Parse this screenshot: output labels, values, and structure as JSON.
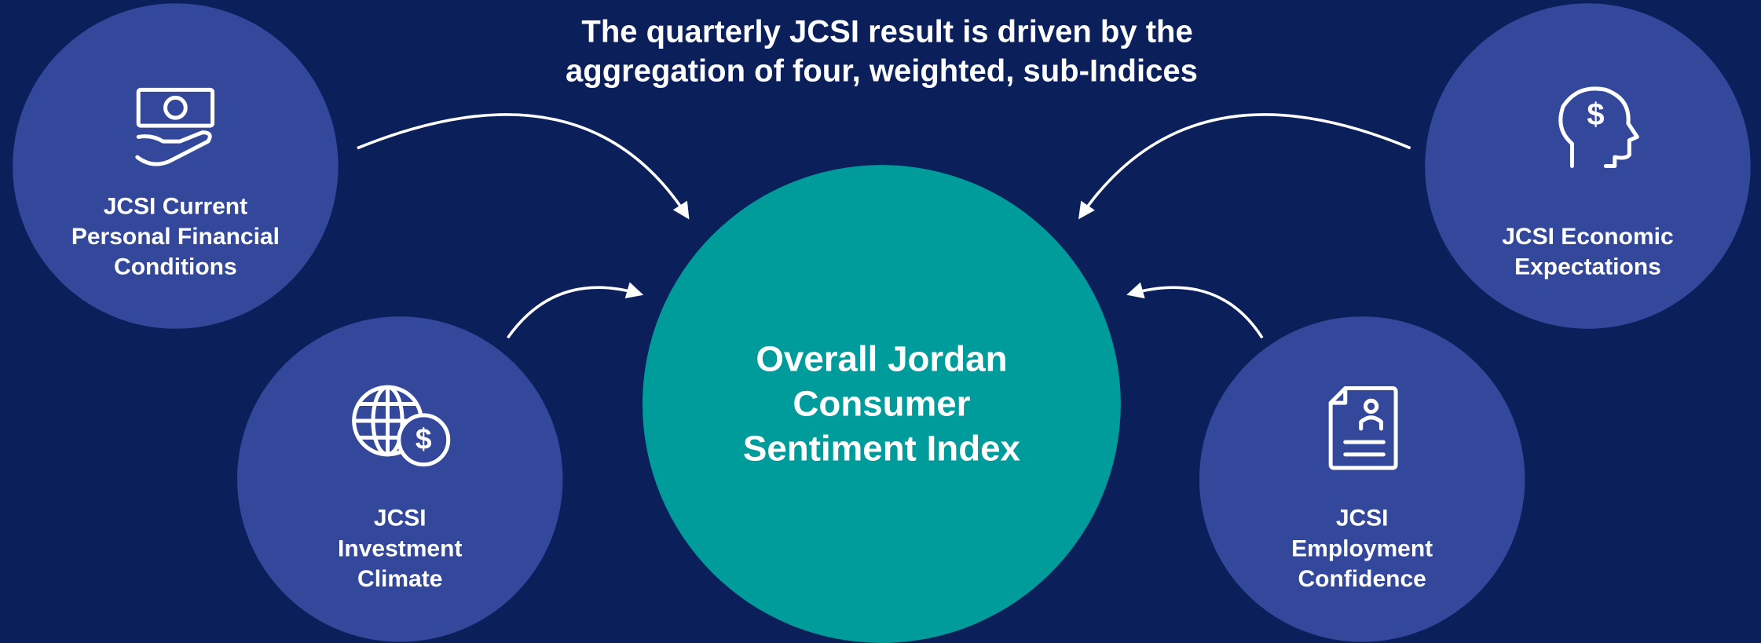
{
  "title": [
    "The quarterly JCSI result is driven by the",
    "aggregation of four, weighted, sub-Indices"
  ],
  "center": {
    "label": [
      "Overall Jordan",
      "Consumer",
      "Sentiment Index"
    ]
  },
  "nodes": [
    {
      "label": [
        "JCSI Current",
        "Personal Financial",
        "Conditions"
      ]
    },
    {
      "label": [
        "JCSI",
        "Investment",
        "Climate"
      ]
    },
    {
      "label": [
        "JCSI Economic",
        "Expectations"
      ]
    },
    {
      "label": [
        "JCSI",
        "Employment",
        "Confidence"
      ]
    }
  ]
}
